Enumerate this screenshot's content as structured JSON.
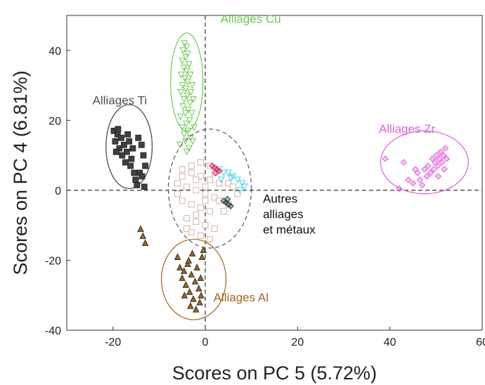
{
  "chart_data": {
    "type": "scatter",
    "title": "",
    "xlabel": "Scores on PC 5 (5.72%)",
    "ylabel": "Scores on PC 4 (6.81%)",
    "xlim": [
      -30,
      60
    ],
    "ylim": [
      -40,
      50
    ],
    "xticks": [
      -20,
      0,
      20,
      40,
      60
    ],
    "yticks": [
      -40,
      -20,
      0,
      20,
      40
    ],
    "xtick_labels": [
      "-20",
      "0",
      "20",
      "40",
      "60"
    ],
    "ytick_labels": [
      "-40",
      "-20",
      "0",
      "20",
      "40"
    ],
    "grid": false,
    "reference_lines": {
      "x": 0,
      "y": 0,
      "style": "dashed"
    },
    "clusters": [
      {
        "label": "Alliages Cu",
        "color": "#6ccb50",
        "marker": "triangle-down",
        "ellipse": {
          "cx": -4,
          "cy": 31,
          "rx": 3.5,
          "ry": 14
        },
        "points": [
          [
            -4.5,
            42
          ],
          [
            -4,
            41
          ],
          [
            -4.8,
            40
          ],
          [
            -3.8,
            39
          ],
          [
            -4.2,
            38
          ],
          [
            -5,
            37
          ],
          [
            -3.5,
            36
          ],
          [
            -4.6,
            35
          ],
          [
            -4,
            34
          ],
          [
            -3.2,
            33
          ],
          [
            -5.2,
            33
          ],
          [
            -4.4,
            32
          ],
          [
            -3.8,
            31
          ],
          [
            -2.8,
            30
          ],
          [
            -4.9,
            30
          ],
          [
            -4.2,
            29
          ],
          [
            -3.1,
            28
          ],
          [
            -5.3,
            28
          ],
          [
            -3.9,
            27
          ],
          [
            -4.6,
            26
          ],
          [
            -2.6,
            26
          ],
          [
            -3.3,
            25
          ],
          [
            -4.8,
            24
          ],
          [
            -3.7,
            23
          ],
          [
            -4.3,
            22
          ],
          [
            -2.9,
            22
          ],
          [
            -5.4,
            21
          ],
          [
            -3.4,
            20
          ],
          [
            -4.1,
            19
          ],
          [
            -2.4,
            18
          ],
          [
            -5,
            18
          ],
          [
            -3.8,
            17
          ],
          [
            -4.6,
            16
          ],
          [
            -3.2,
            15
          ],
          [
            -4.3,
            14
          ],
          [
            -2.7,
            14
          ],
          [
            -5.5,
            13
          ],
          [
            -3.5,
            12
          ],
          [
            -4,
            11
          ]
        ]
      },
      {
        "label": "Alliages Ti",
        "color": "#404040",
        "marker": "square",
        "ellipse": {
          "cx": -16.5,
          "cy": 12.5,
          "rx": 5,
          "ry": 12
        },
        "points": [
          [
            -19.8,
            17
          ],
          [
            -19.5,
            14
          ],
          [
            -19,
            16
          ],
          [
            -18.6,
            12
          ],
          [
            -18.2,
            15
          ],
          [
            -18,
            10
          ],
          [
            -17.6,
            13
          ],
          [
            -17.3,
            8
          ],
          [
            -17,
            11
          ],
          [
            -16.8,
            16
          ],
          [
            -16.5,
            14
          ],
          [
            -16.2,
            7
          ],
          [
            -16,
            9
          ],
          [
            -15.7,
            12
          ],
          [
            -15.4,
            5
          ],
          [
            -15.1,
            3
          ],
          [
            -14.8,
            1.5
          ],
          [
            -18.9,
            17.5
          ],
          [
            -19.3,
            11
          ],
          [
            -14.5,
            15
          ],
          [
            -13.8,
            13
          ],
          [
            -13.4,
            10
          ],
          [
            -13,
            7
          ],
          [
            -14.2,
            5
          ],
          [
            -13.7,
            4
          ],
          [
            -13.2,
            1
          ]
        ]
      },
      {
        "label": "Alliages Zr",
        "color": "#e060e0",
        "marker": "diamond",
        "ellipse": {
          "cx": 47.5,
          "cy": 8,
          "rx": 9.5,
          "ry": 9
        },
        "points": [
          [
            39,
            9
          ],
          [
            42,
            0.5
          ],
          [
            43,
            8
          ],
          [
            44,
            3
          ],
          [
            45,
            2
          ],
          [
            45.5,
            6
          ],
          [
            46,
            5
          ],
          [
            46.5,
            3
          ],
          [
            47,
            1.5
          ],
          [
            47.5,
            6
          ],
          [
            48,
            4
          ],
          [
            48.3,
            7
          ],
          [
            48.8,
            5
          ],
          [
            49.2,
            9
          ],
          [
            49.5,
            6
          ],
          [
            49.8,
            8
          ],
          [
            50.1,
            10
          ],
          [
            50.4,
            7
          ],
          [
            50.7,
            9
          ],
          [
            51,
            11
          ],
          [
            51.3,
            8
          ],
          [
            51.6,
            10
          ],
          [
            52,
            12
          ],
          [
            52.3,
            9
          ],
          [
            51.8,
            6
          ],
          [
            50.5,
            4
          ]
        ]
      },
      {
        "label": "Alliages Al",
        "color": "#a0661c",
        "marker": "triangle-up",
        "ellipse": {
          "cx": -2.5,
          "cy": -25.5,
          "rx": 7,
          "ry": 11.5
        },
        "points": [
          [
            -14,
            -11
          ],
          [
            -13.5,
            -13
          ],
          [
            -13,
            -15
          ],
          [
            -6,
            -19
          ],
          [
            -5.5,
            -22
          ],
          [
            -5,
            -25
          ],
          [
            -4.6,
            -23
          ],
          [
            -4.2,
            -27
          ],
          [
            -3.8,
            -21
          ],
          [
            -3.4,
            -29
          ],
          [
            -3,
            -24
          ],
          [
            -2.6,
            -31
          ],
          [
            -2.2,
            -26
          ],
          [
            -1.8,
            -22
          ],
          [
            -1.4,
            -28
          ],
          [
            -1,
            -25
          ],
          [
            -0.7,
            -19
          ],
          [
            -0.4,
            -17
          ],
          [
            -3.2,
            -33
          ],
          [
            -2,
            -34
          ],
          [
            -4.5,
            -30
          ],
          [
            -1.2,
            -32
          ],
          [
            -3.6,
            -20
          ],
          [
            -2.8,
            -18
          ],
          [
            -0.9,
            -30
          ]
        ]
      },
      {
        "label": "Autres alliages et métaux",
        "color": "#c8a090",
        "marker": "square-open",
        "ellipse": {
          "cx": 1,
          "cy": 0.5,
          "rx": 9,
          "ry": 17
        },
        "points": [
          [
            -5,
            6
          ],
          [
            -3,
            5
          ],
          [
            -1,
            4
          ],
          [
            1,
            3
          ],
          [
            3,
            2
          ],
          [
            -6,
            2
          ],
          [
            -4,
            1
          ],
          [
            -2,
            0
          ],
          [
            0,
            -1
          ],
          [
            2,
            -2
          ],
          [
            -5,
            -3
          ],
          [
            -3,
            -4
          ],
          [
            -1,
            -5
          ],
          [
            1,
            -6
          ],
          [
            -4,
            -8
          ],
          [
            -2,
            -9
          ],
          [
            0,
            -10
          ],
          [
            2,
            -11
          ],
          [
            -1,
            -13
          ],
          [
            1,
            -14
          ],
          [
            -3,
            7
          ],
          [
            -1,
            8
          ],
          [
            1,
            7
          ],
          [
            3,
            -3
          ],
          [
            4,
            -6
          ],
          [
            -6,
            -1
          ],
          [
            -2,
            3
          ],
          [
            0,
            1
          ],
          [
            2,
            5
          ],
          [
            -4,
            -11
          ],
          [
            -3,
            -12
          ],
          [
            5,
            2
          ],
          [
            6,
            1
          ],
          [
            7,
            -1
          ],
          [
            5,
            -4
          ],
          [
            -5,
            4
          ],
          [
            -2,
            -7
          ],
          [
            0,
            -3
          ]
        ]
      },
      {
        "label": "",
        "color": "#40d0e0",
        "marker": "triangle-down",
        "ellipse": null,
        "points": [
          [
            3,
            6
          ],
          [
            4,
            5
          ],
          [
            5,
            5
          ],
          [
            6,
            4
          ],
          [
            7,
            3
          ],
          [
            8,
            2
          ],
          [
            8.5,
            1
          ],
          [
            3.5,
            3
          ],
          [
            5.5,
            3.5
          ],
          [
            7.5,
            0
          ]
        ]
      },
      {
        "label": "",
        "color": "#e02060",
        "marker": "diamond",
        "ellipse": null,
        "points": [
          [
            1.5,
            7
          ],
          [
            2,
            6.5
          ],
          [
            2.5,
            6
          ],
          [
            3,
            5.5
          ],
          [
            2.2,
            5
          ]
        ]
      },
      {
        "label": "",
        "color": "#203838",
        "marker": "diamond",
        "ellipse": null,
        "points": [
          [
            4,
            -3
          ],
          [
            4.5,
            -3.5
          ],
          [
            5,
            -4
          ],
          [
            5.5,
            -4.5
          ],
          [
            4.8,
            -2.5
          ]
        ]
      }
    ]
  }
}
